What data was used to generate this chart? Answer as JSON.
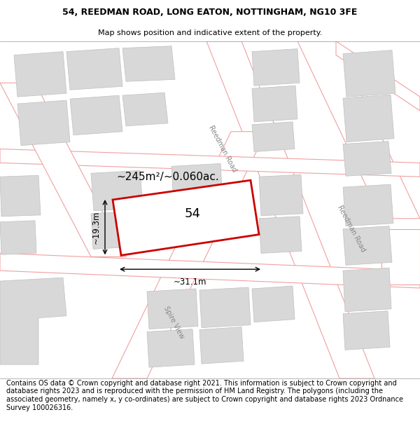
{
  "title_line1": "54, REEDMAN ROAD, LONG EATON, NOTTINGHAM, NG10 3FE",
  "title_line2": "Map shows position and indicative extent of the property.",
  "footer_text": "Contains OS data © Crown copyright and database right 2021. This information is subject to Crown copyright and database rights 2023 and is reproduced with the permission of HM Land Registry. The polygons (including the associated geometry, namely x, y co-ordinates) are subject to Crown copyright and database rights 2023 Ordnance Survey 100026316.",
  "area_label": "~245m²/~0.060ac.",
  "property_number": "54",
  "width_label": "~31.1m",
  "height_label": "~19.3m",
  "map_bg": "#f7f7f7",
  "building_fill": "#d8d8d8",
  "building_edge": "#c0c0c0",
  "highlight_fill": "#ffffff",
  "highlight_edge": "#cc0000",
  "road_fill": "#ffffff",
  "road_edge": "#f0a0a0",
  "road_lw": 0.8,
  "building_lw": 0.5,
  "title_fontsize": 9.0,
  "subtitle_fontsize": 8.0,
  "footer_fontsize": 7.0
}
